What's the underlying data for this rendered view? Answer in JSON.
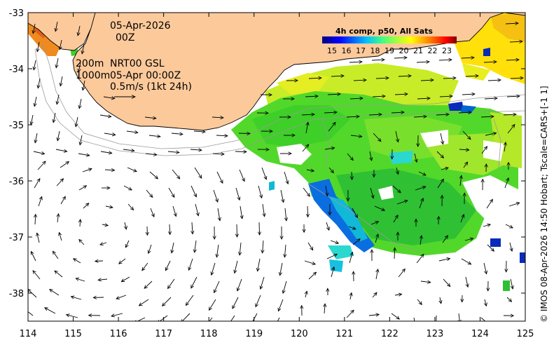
{
  "map": {
    "date_line1": "05-Apr-2026",
    "date_line2": "00Z",
    "depth_line1": "200m",
    "depth_line2": "1000m",
    "product": "NRT00 GSL",
    "valid_time": "05-Apr 00:00Z",
    "scale_text": "0.5m/s (1kt 24h)",
    "credit": "© IMOS 08-Apr-2026 14:50 Hobart; Tscale=CARS+[-1 1]",
    "colors": {
      "land": "#fcc99b",
      "ocean_bg": "#ffffff",
      "arrows": "#000000",
      "contours": "#9a9a9a"
    }
  },
  "colorbar": {
    "title": "4h comp, p50, All Sats",
    "ticks": [
      "15",
      "16",
      "17",
      "18",
      "19",
      "20",
      "21",
      "22",
      "23"
    ],
    "colors": [
      "#00007f",
      "#0000ff",
      "#0080ff",
      "#00ffff",
      "#80ff80",
      "#ffff00",
      "#ff8000",
      "#ff0000",
      "#7f0000"
    ]
  },
  "axes": {
    "x_ticks": [
      "114",
      "115",
      "116",
      "117",
      "118",
      "119",
      "120",
      "121",
      "122",
      "123",
      "124",
      "125"
    ],
    "y_ticks": [
      "-33",
      "-34",
      "-35",
      "-36",
      "-37",
      "-38"
    ],
    "xlim": [
      114,
      125
    ],
    "ylim": [
      -38.5,
      -33
    ]
  }
}
